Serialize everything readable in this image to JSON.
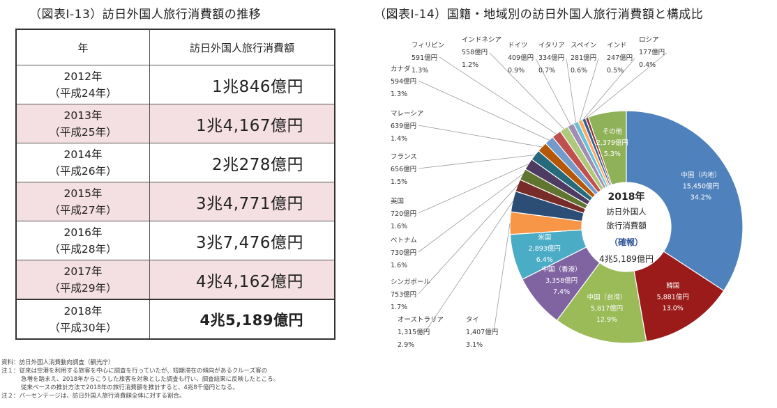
{
  "left_title": "（図表Ⅰ-13）訪日外国人旅行消費額の推移",
  "right_title": "（図表Ⅰ-14）国籍・地域別の訪日外国人旅行消費額と構成比",
  "table": {
    "headers": [
      "年",
      "訪日外国人旅行消費額"
    ],
    "rows": [
      {
        "year": "2012年",
        "era": "（平成24年）",
        "amount": "1兆846億円",
        "highlight": false,
        "bold": false
      },
      {
        "year": "2013年",
        "era": "（平成25年）",
        "amount": "1兆4,167億円",
        "highlight": true,
        "bold": false
      },
      {
        "year": "2014年",
        "era": "（平成26年）",
        "amount": "2兆278億円",
        "highlight": false,
        "bold": false
      },
      {
        "year": "2015年",
        "era": "（平成27年）",
        "amount": "3兆4,771億円",
        "highlight": true,
        "bold": false
      },
      {
        "year": "2016年",
        "era": "（平成28年）",
        "amount": "3兆7,476億円",
        "highlight": false,
        "bold": false
      },
      {
        "year": "2017年",
        "era": "（平成29年）",
        "amount": "4兆4,162億円",
        "highlight": true,
        "bold": false
      },
      {
        "year": "2018年",
        "era": "（平成30年）",
        "amount": "4兆5,189億円",
        "highlight": false,
        "bold": true
      }
    ]
  },
  "notes": [
    "資料：訪日外国人消費動向調査（観光庁）",
    "注１：従来は空港を利用する旅客を中心に調査を行っていたが、短期滞在の傾向があるクルーズ客の",
    "急増を踏まえ、2018年からこうした旅客を対象とした調査も行い、調査結果に反映したところ。",
    "従来ベースの推計方法で2018年の旅行消費額を推計すると、4兆8千億円となる。",
    "注２：パーセンテージは、訪日外国人旅行消費額全体に対する割合。"
  ],
  "chart_data": {
    "type": "pie",
    "center": {
      "line1": "2018年",
      "line2": "訪日外国人",
      "line3": "旅行消費額",
      "line4": "（確報）",
      "line5": "4兆5,189億円"
    },
    "slices": [
      {
        "name": "中国（内地）",
        "value": "15,450億円",
        "pct": "34.2%",
        "share": 34.2,
        "color": "#4f81bd",
        "inner": true
      },
      {
        "name": "韓国",
        "value": "5,881億円",
        "pct": "13.0%",
        "share": 13.0,
        "color": "#9b1b1b",
        "inner": true
      },
      {
        "name": "中国（台湾）",
        "value": "5,817億円",
        "pct": "12.9%",
        "share": 12.9,
        "color": "#9bbb59",
        "inner": true
      },
      {
        "name": "中国（香港）",
        "value": "3,358億円",
        "pct": "7.4%",
        "share": 7.4,
        "color": "#8064a2",
        "inner": true
      },
      {
        "name": "米国",
        "value": "2,893億円",
        "pct": "6.4%",
        "share": 6.4,
        "color": "#4bacc6",
        "inner": true
      },
      {
        "name": "タイ",
        "value": "1,407億円",
        "pct": "3.1%",
        "share": 3.1,
        "color": "#f79646",
        "inner": false
      },
      {
        "name": "オーストラリア",
        "value": "1,315億円",
        "pct": "2.9%",
        "share": 2.9,
        "color": "#2c4d75",
        "inner": false
      },
      {
        "name": "シンガポール",
        "value": "753億円",
        "pct": "1.7%",
        "share": 1.7,
        "color": "#772c2a",
        "inner": false
      },
      {
        "name": "ベトナム",
        "value": "730億円",
        "pct": "1.6%",
        "share": 1.6,
        "color": "#5f7530",
        "inner": false
      },
      {
        "name": "英国",
        "value": "720億円",
        "pct": "1.6%",
        "share": 1.6,
        "color": "#4d3b62",
        "inner": false
      },
      {
        "name": "フランス",
        "value": "656億円",
        "pct": "1.5%",
        "share": 1.5,
        "color": "#276a7c",
        "inner": false
      },
      {
        "name": "マレーシア",
        "value": "639億円",
        "pct": "1.4%",
        "share": 1.4,
        "color": "#b65708",
        "inner": false
      },
      {
        "name": "カナダ",
        "value": "594億円",
        "pct": "1.3%",
        "share": 1.3,
        "color": "#729aca",
        "inner": false
      },
      {
        "name": "フィリピン",
        "value": "591億円",
        "pct": "1.3%",
        "share": 1.3,
        "color": "#c0504d",
        "inner": false
      },
      {
        "name": "インドネシア",
        "value": "558億円",
        "pct": "1.2%",
        "share": 1.2,
        "color": "#afc97a",
        "inner": false
      },
      {
        "name": "ドイツ",
        "value": "409億円",
        "pct": "0.9%",
        "share": 0.9,
        "color": "#a08db5",
        "inner": false
      },
      {
        "name": "イタリア",
        "value": "334億円",
        "pct": "0.7%",
        "share": 0.7,
        "color": "#6ec0d4",
        "inner": false
      },
      {
        "name": "スペイン",
        "value": "281億円",
        "pct": "0.6%",
        "share": 0.6,
        "color": "#f9ab6b",
        "inner": false
      },
      {
        "name": "インド",
        "value": "247億円",
        "pct": "0.5%",
        "share": 0.5,
        "color": "#3a5f8c",
        "inner": false
      },
      {
        "name": "ロシア",
        "value": "177億円",
        "pct": "0.4%",
        "share": 0.4,
        "color": "#8c3836",
        "inner": false
      },
      {
        "name": "その他",
        "value": "2,379億円",
        "pct": "5.3%",
        "share": 5.3,
        "color": "#8fb158",
        "inner": true
      }
    ]
  }
}
